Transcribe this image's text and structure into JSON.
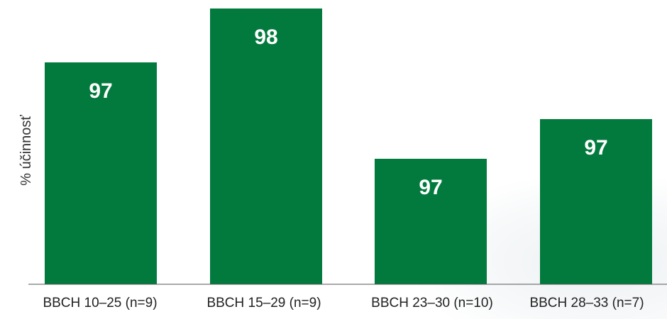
{
  "chart_data": {
    "type": "bar",
    "title": "",
    "xlabel": "",
    "ylabel": "% účinnosť",
    "categories": [
      "BBCH 10–25 (n=9)",
      "BBCH 15–29 (n=9)",
      "BBCH 23–30 (n=10)",
      "BBCH 28–33 (n=7)"
    ],
    "values": [
      97,
      98,
      97,
      97
    ],
    "data_labels": [
      "97",
      "98",
      "97",
      "97"
    ],
    "bar_color": "#037a3d",
    "grid": false,
    "legend": "none"
  }
}
